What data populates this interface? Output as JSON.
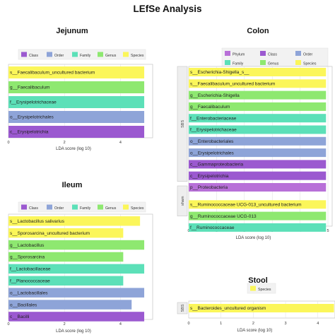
{
  "title": "LEfSe Analysis",
  "colors": {
    "Class": "#9b59d0",
    "Order": "#8ea4d8",
    "Family": "#5ce0b8",
    "Genus": "#8ee870",
    "Species": "#fbf65a",
    "Phylum": "#b870d8",
    "grid": "#dddddd",
    "panel_border": "#bbbbbb"
  },
  "chart_data": [
    {
      "type": "bar",
      "title": "Jejunum",
      "legend": [
        "Class",
        "Order",
        "Family",
        "Genus",
        "Species"
      ],
      "xlabel": "LDA score (log 10)",
      "xlim": [
        0,
        5
      ],
      "xticks": [
        "0",
        "2",
        "4"
      ],
      "groups": [],
      "bars": [
        {
          "label": "s__Faecalibaculum_uncultured bacterium",
          "value": 4.85,
          "level": "Species"
        },
        {
          "label": "g__Faecalibaculum",
          "value": 4.85,
          "level": "Genus"
        },
        {
          "label": "f__Erysipelotrichaceae",
          "value": 4.85,
          "level": "Family"
        },
        {
          "label": "o__Erysipelotrichales",
          "value": 4.85,
          "level": "Order"
        },
        {
          "label": "c__Erysipelotrichia",
          "value": 4.85,
          "level": "Class"
        }
      ]
    },
    {
      "type": "bar",
      "title": "Colon",
      "legend": [
        "Phylum",
        "Class",
        "Order",
        "Family",
        "Genus",
        "Species"
      ],
      "xlabel": "LDA score (log 10)",
      "xlim": [
        0,
        5
      ],
      "xticks": [
        "0",
        "1",
        "2",
        "3",
        "4",
        "5"
      ],
      "groups": [
        {
          "label": "SBS",
          "from": 0,
          "to": 9
        },
        {
          "label": "sham",
          "from": 10,
          "to": 12
        }
      ],
      "bars": [
        {
          "label": "s__Escherichia-Shigella_s__",
          "value": 4.93,
          "level": "Species"
        },
        {
          "label": "s__Faecalibaculum_uncultured bacterium",
          "value": 4.93,
          "level": "Species"
        },
        {
          "label": "g__Escherichia-Shigella",
          "value": 4.93,
          "level": "Genus"
        },
        {
          "label": "g__Faecalibaculum",
          "value": 4.93,
          "level": "Genus"
        },
        {
          "label": "f__Enterobacteriaceae",
          "value": 4.93,
          "level": "Family"
        },
        {
          "label": "f__Erysipelotrichaceae",
          "value": 4.93,
          "level": "Family"
        },
        {
          "label": "o__Enterobacteriales",
          "value": 4.93,
          "level": "Order"
        },
        {
          "label": "o__Erysipelotrichales",
          "value": 4.93,
          "level": "Order"
        },
        {
          "label": "c__Gammaproteobacteria",
          "value": 4.93,
          "level": "Class"
        },
        {
          "label": "c__Erysipelotrichia",
          "value": 4.93,
          "level": "Class"
        },
        {
          "label": "p__Proteobacteria",
          "value": 4.93,
          "level": "Phylum"
        },
        {
          "label": "s__Ruminococcaceae UCG-013_uncultured bacterium",
          "value": 4.93,
          "level": "Species"
        },
        {
          "label": "g__Ruminococcaceae UCG-013",
          "value": 4.93,
          "level": "Genus"
        },
        {
          "label": "f__Ruminococcaceae",
          "value": 4.93,
          "level": "Family"
        }
      ]
    },
    {
      "type": "bar",
      "title": "Ileum",
      "legend": [
        "Class",
        "Order",
        "Family",
        "Genus",
        "Species"
      ],
      "xlabel": "LDA score (log 10)",
      "xlim": [
        0,
        5
      ],
      "xticks": [
        "0",
        "2",
        "4"
      ],
      "groups": [],
      "bars": [
        {
          "label": "s__Lactobacillus salivarius",
          "value": 4.7,
          "level": "Species"
        },
        {
          "label": "s__Sporosarcina_uncultured bacterium",
          "value": 4.1,
          "level": "Species"
        },
        {
          "label": "g__Lactobacillus",
          "value": 4.85,
          "level": "Genus"
        },
        {
          "label": "g__Sporosarcina",
          "value": 4.1,
          "level": "Genus"
        },
        {
          "label": "f__Lactobacillaceae",
          "value": 4.85,
          "level": "Family"
        },
        {
          "label": "f__Planococcaceae",
          "value": 4.1,
          "level": "Family"
        },
        {
          "label": "o__Lactobacillales",
          "value": 4.85,
          "level": "Order"
        },
        {
          "label": "o__Bacillales",
          "value": 4.4,
          "level": "Order"
        },
        {
          "label": "c__Bacilli",
          "value": 4.85,
          "level": "Class"
        }
      ]
    },
    {
      "type": "bar",
      "title": "Stool",
      "legend": [
        "Species"
      ],
      "xlabel": "LDA score (log 10)",
      "xlim": [
        0,
        4.4
      ],
      "xticks": [
        "0",
        "1",
        "2",
        "3",
        "4"
      ],
      "groups": [
        {
          "label": "SBS",
          "from": 0,
          "to": 0
        }
      ],
      "bars": [
        {
          "label": "s__Bacteroides_uncultured organism",
          "value": 4.5,
          "level": "Species"
        }
      ]
    }
  ]
}
